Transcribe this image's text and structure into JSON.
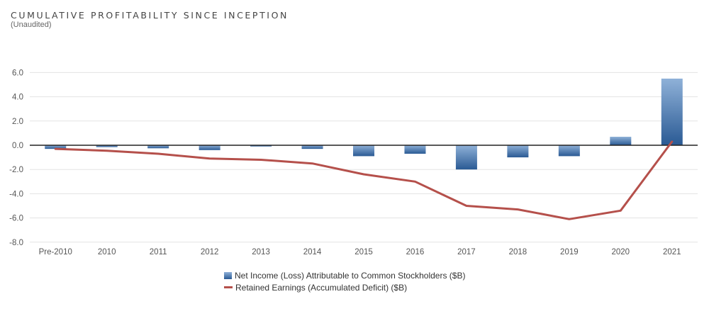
{
  "chart_data": {
    "type": "bar",
    "title": "CUMULATIVE PROFITABILITY SINCE INCEPTION",
    "subtitle": "(Unaudited)",
    "categories": [
      "Pre-2010",
      "2010",
      "2011",
      "2012",
      "2013",
      "2014",
      "2015",
      "2016",
      "2017",
      "2018",
      "2019",
      "2020",
      "2021"
    ],
    "series": [
      {
        "name": "Net Income (Loss) Attributable to Common Stockholders ($B)",
        "type": "bar",
        "values": [
          -0.3,
          -0.15,
          -0.25,
          -0.4,
          -0.1,
          -0.3,
          -0.9,
          -0.7,
          -2.0,
          -1.0,
          -0.9,
          0.7,
          5.5
        ]
      },
      {
        "name": "Retained Earnings (Accumulated Deficit) ($B)",
        "type": "line",
        "values": [
          -0.3,
          -0.45,
          -0.7,
          -1.1,
          -1.2,
          -1.5,
          -2.4,
          -3.0,
          -5.0,
          -5.3,
          -6.1,
          -5.4,
          0.3
        ]
      }
    ],
    "ylim": [
      -8.0,
      8.0
    ],
    "yticks": [
      "6.0",
      "4.0",
      "2.0",
      "0.0",
      "-2.0",
      "-4.0",
      "-6.0",
      "-8.0"
    ],
    "ytick_values": [
      6,
      4,
      2,
      0,
      -2,
      -4,
      -6,
      -8
    ],
    "grid": true,
    "legend_position": "bottom",
    "colors": {
      "bar_top": "#8fb1d8",
      "bar_bottom": "#2a5a94",
      "line": "#b5504b",
      "grid": "#e3e3e3",
      "zero_line": "#222222"
    }
  }
}
